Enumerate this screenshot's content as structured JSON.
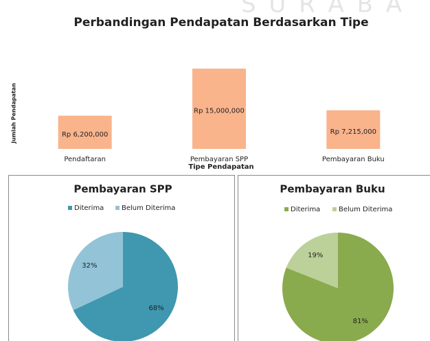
{
  "watermark": "S U R A B A",
  "chart_data": [
    {
      "type": "bar",
      "title": "Perbandingan Pendapatan Berdasarkan Tipe",
      "ylabel": "Jumlah Pendapatan",
      "xlabel": "Tipe Pendapatan",
      "categories": [
        "Pendaftaran",
        "Pembayaran SPP",
        "Pembayaran Buku"
      ],
      "values": [
        6200000,
        15000000,
        7215000
      ],
      "value_labels": [
        "Rp 6,200,000",
        "Rp 15,000,000",
        "Rp 7,215,000"
      ],
      "color": "#f9b48c",
      "ylim": [
        0,
        20000000
      ]
    },
    {
      "type": "pie",
      "title": "Pembayaran SPP",
      "categories": [
        "Diterima",
        "Belum Diterima"
      ],
      "values": [
        68,
        32
      ],
      "value_labels": [
        "68%",
        "32%"
      ],
      "colors": [
        "#4097b0",
        "#93c3d6"
      ]
    },
    {
      "type": "pie",
      "title": "Pembayaran Buku",
      "categories": [
        "Diterima",
        "Belum Diterima"
      ],
      "values": [
        81,
        19
      ],
      "value_labels": [
        "81%",
        "19%"
      ],
      "colors": [
        "#8aaa4e",
        "#bcd09a"
      ]
    }
  ]
}
